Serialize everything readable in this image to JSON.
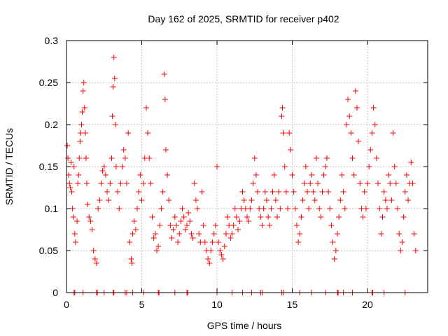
{
  "chart_data": {
    "type": "scatter",
    "title": "Day 162 of 2025, SRMTID for receiver p402",
    "xlabel": "GPS time / hours",
    "ylabel": "SRMTID / TECUs",
    "xlim": [
      0,
      24
    ],
    "ylim": [
      0,
      0.3
    ],
    "x_ticks": [
      0,
      5,
      10,
      15,
      20
    ],
    "x_tick_labels": [
      "0",
      "5",
      "10",
      "15",
      "20"
    ],
    "y_ticks": [
      0,
      0.05,
      0.1,
      0.15,
      0.2,
      0.25,
      0.3
    ],
    "y_tick_labels": [
      "0",
      "0.05",
      "0.1",
      "0.15",
      "0.2",
      "0.25",
      "0.3"
    ],
    "grid": true,
    "marker": "+",
    "color": "#ff0000",
    "series": [
      {
        "name": "SRMTID",
        "points": [
          [
            0.05,
            0.175
          ],
          [
            0.1,
            0.16
          ],
          [
            0.15,
            0.14
          ],
          [
            0.2,
            0.13
          ],
          [
            0.25,
            0.125
          ],
          [
            0.3,
            0.155
          ],
          [
            0.35,
            0.12
          ],
          [
            0.4,
            0.1
          ],
          [
            0.45,
            0.09
          ],
          [
            0.5,
            0.15
          ],
          [
            0.55,
            0.07
          ],
          [
            0.6,
            0.06
          ],
          [
            0.7,
            0.085
          ],
          [
            0.75,
            0.13
          ],
          [
            0.8,
            0.14
          ],
          [
            0.85,
            0.16
          ],
          [
            0.9,
            0.18
          ],
          [
            0.95,
            0.19
          ],
          [
            1.0,
            0.2
          ],
          [
            1.05,
            0.215
          ],
          [
            1.1,
            0.24
          ],
          [
            1.15,
            0.25
          ],
          [
            1.2,
            0.22
          ],
          [
            1.25,
            0.19
          ],
          [
            1.3,
            0.16
          ],
          [
            1.35,
            0.13
          ],
          [
            1.4,
            0.105
          ],
          [
            1.5,
            0.09
          ],
          [
            1.6,
            0.085
          ],
          [
            1.7,
            0.075
          ],
          [
            1.8,
            0.05
          ],
          [
            1.9,
            0.04
          ],
          [
            2.0,
            0.035
          ],
          [
            2.1,
            0.1
          ],
          [
            2.2,
            0.11
          ],
          [
            2.3,
            0.13
          ],
          [
            2.4,
            0.145
          ],
          [
            2.5,
            0.15
          ],
          [
            2.6,
            0.14
          ],
          [
            2.7,
            0.12
          ],
          [
            2.8,
            0.11
          ],
          [
            2.9,
            0.13
          ],
          [
            3.0,
            0.16
          ],
          [
            3.05,
            0.21
          ],
          [
            3.1,
            0.245
          ],
          [
            3.15,
            0.28
          ],
          [
            3.2,
            0.255
          ],
          [
            3.25,
            0.2
          ],
          [
            3.3,
            0.15
          ],
          [
            3.4,
            0.12
          ],
          [
            3.5,
            0.1
          ],
          [
            3.6,
            0.13
          ],
          [
            3.7,
            0.15
          ],
          [
            3.8,
            0.17
          ],
          [
            3.9,
            0.16
          ],
          [
            4.0,
            0.13
          ],
          [
            4.1,
            0.19
          ],
          [
            4.2,
            0.06
          ],
          [
            4.3,
            0.04
          ],
          [
            4.35,
            0.035
          ],
          [
            4.4,
            0.07
          ],
          [
            4.5,
            0.085
          ],
          [
            4.6,
            0.075
          ],
          [
            4.7,
            0.1
          ],
          [
            4.8,
            0.12
          ],
          [
            4.9,
            0.14
          ],
          [
            5.0,
            0.11
          ],
          [
            5.1,
            0.13
          ],
          [
            5.2,
            0.16
          ],
          [
            5.3,
            0.22
          ],
          [
            5.4,
            0.19
          ],
          [
            5.5,
            0.16
          ],
          [
            5.6,
            0.13
          ],
          [
            5.7,
            0.09
          ],
          [
            5.8,
            0.065
          ],
          [
            5.9,
            0.07
          ],
          [
            6.0,
            0.05
          ],
          [
            6.1,
            0.055
          ],
          [
            6.2,
            0.08
          ],
          [
            6.3,
            0.1
          ],
          [
            6.4,
            0.12
          ],
          [
            6.5,
            0.26
          ],
          [
            6.55,
            0.23
          ],
          [
            6.6,
            0.17
          ],
          [
            6.7,
            0.14
          ],
          [
            6.8,
            0.11
          ],
          [
            6.9,
            0.08
          ],
          [
            7.0,
            0.065
          ],
          [
            7.1,
            0.075
          ],
          [
            7.2,
            0.09
          ],
          [
            7.3,
            0.08
          ],
          [
            7.4,
            0.06
          ],
          [
            7.5,
            0.07
          ],
          [
            7.6,
            0.085
          ],
          [
            7.7,
            0.1
          ],
          [
            7.8,
            0.09
          ],
          [
            7.9,
            0.075
          ],
          [
            8.0,
            0.08
          ],
          [
            8.1,
            0.095
          ],
          [
            8.2,
            0.085
          ],
          [
            8.3,
            0.07
          ],
          [
            8.4,
            0.065
          ],
          [
            8.5,
            0.13
          ],
          [
            8.6,
            0.11
          ],
          [
            8.7,
            0.1
          ],
          [
            8.8,
            0.07
          ],
          [
            8.9,
            0.06
          ],
          [
            9.0,
            0.12
          ],
          [
            9.1,
            0.08
          ],
          [
            9.2,
            0.06
          ],
          [
            9.3,
            0.05
          ],
          [
            9.4,
            0.04
          ],
          [
            9.5,
            0.035
          ],
          [
            9.6,
            0.05
          ],
          [
            9.7,
            0.06
          ],
          [
            9.8,
            0.07
          ],
          [
            9.9,
            0.08
          ],
          [
            10.0,
            0.15
          ],
          [
            10.1,
            0.06
          ],
          [
            10.2,
            0.05
          ],
          [
            10.3,
            0.045
          ],
          [
            10.4,
            0.04
          ],
          [
            10.5,
            0.055
          ],
          [
            10.6,
            0.07
          ],
          [
            10.7,
            0.09
          ],
          [
            10.8,
            0.08
          ],
          [
            10.9,
            0.065
          ],
          [
            11.0,
            0.07
          ],
          [
            11.1,
            0.08
          ],
          [
            11.2,
            0.1
          ],
          [
            11.3,
            0.09
          ],
          [
            11.4,
            0.075
          ],
          [
            11.5,
            0.085
          ],
          [
            11.6,
            0.1
          ],
          [
            11.7,
            0.12
          ],
          [
            11.8,
            0.11
          ],
          [
            11.9,
            0.1
          ],
          [
            12.0,
            0.09
          ],
          [
            12.1,
            0.085
          ],
          [
            12.2,
            0.1
          ],
          [
            12.3,
            0.11
          ],
          [
            12.4,
            0.13
          ],
          [
            12.5,
            0.16
          ],
          [
            12.6,
            0.14
          ],
          [
            12.7,
            0.12
          ],
          [
            12.8,
            0.1
          ],
          [
            12.9,
            0.09
          ],
          [
            13.0,
            0.08
          ],
          [
            13.1,
            0.1
          ],
          [
            13.2,
            0.12
          ],
          [
            13.3,
            0.11
          ],
          [
            13.4,
            0.09
          ],
          [
            13.5,
            0.08
          ],
          [
            13.6,
            0.1
          ],
          [
            13.7,
            0.12
          ],
          [
            13.8,
            0.14
          ],
          [
            13.9,
            0.11
          ],
          [
            14.0,
            0.09
          ],
          [
            14.1,
            0.12
          ],
          [
            14.2,
            0.1
          ],
          [
            14.3,
            0.21
          ],
          [
            14.35,
            0.22
          ],
          [
            14.4,
            0.19
          ],
          [
            14.5,
            0.15
          ],
          [
            14.6,
            0.12
          ],
          [
            14.7,
            0.1
          ],
          [
            14.8,
            0.19
          ],
          [
            14.9,
            0.17
          ],
          [
            15.0,
            0.14
          ],
          [
            15.1,
            0.12
          ],
          [
            15.2,
            0.1
          ],
          [
            15.3,
            0.08
          ],
          [
            15.4,
            0.06
          ],
          [
            15.5,
            0.07
          ],
          [
            15.6,
            0.09
          ],
          [
            15.7,
            0.11
          ],
          [
            15.8,
            0.13
          ],
          [
            15.9,
            0.15
          ],
          [
            16.0,
            0.12
          ],
          [
            16.1,
            0.1
          ],
          [
            16.2,
            0.13
          ],
          [
            16.3,
            0.14
          ],
          [
            16.4,
            0.12
          ],
          [
            16.5,
            0.11
          ],
          [
            16.6,
            0.16
          ],
          [
            16.7,
            0.13
          ],
          [
            16.8,
            0.1
          ],
          [
            16.9,
            0.09
          ],
          [
            17.0,
            0.12
          ],
          [
            17.1,
            0.14
          ],
          [
            17.2,
            0.15
          ],
          [
            17.3,
            0.16
          ],
          [
            17.4,
            0.12
          ],
          [
            17.5,
            0.1
          ],
          [
            17.6,
            0.08
          ],
          [
            17.7,
            0.06
          ],
          [
            17.8,
            0.04
          ],
          [
            17.9,
            0.05
          ],
          [
            18.0,
            0.07
          ],
          [
            18.1,
            0.09
          ],
          [
            18.2,
            0.11
          ],
          [
            18.3,
            0.14
          ],
          [
            18.4,
            0.12
          ],
          [
            18.5,
            0.1
          ],
          [
            18.6,
            0.2
          ],
          [
            18.7,
            0.23
          ],
          [
            18.8,
            0.21
          ],
          [
            18.9,
            0.19
          ],
          [
            19.0,
            0.16
          ],
          [
            19.1,
            0.14
          ],
          [
            19.2,
            0.24
          ],
          [
            19.3,
            0.22
          ],
          [
            19.4,
            0.18
          ],
          [
            19.5,
            0.13
          ],
          [
            19.6,
            0.1
          ],
          [
            19.7,
            0.09
          ],
          [
            19.8,
            0.12
          ],
          [
            19.9,
            0.1
          ],
          [
            20.0,
            0.13
          ],
          [
            20.1,
            0.15
          ],
          [
            20.2,
            0.17
          ],
          [
            20.3,
            0.19
          ],
          [
            20.4,
            0.22
          ],
          [
            20.5,
            0.2
          ],
          [
            20.6,
            0.16
          ],
          [
            20.7,
            0.13
          ],
          [
            20.8,
            0.1
          ],
          [
            20.9,
            0.07
          ],
          [
            21.0,
            0.09
          ],
          [
            21.1,
            0.12
          ],
          [
            21.2,
            0.11
          ],
          [
            21.3,
            0.1
          ],
          [
            21.4,
            0.14
          ],
          [
            21.5,
            0.13
          ],
          [
            21.6,
            0.11
          ],
          [
            21.7,
            0.19
          ],
          [
            21.8,
            0.15
          ],
          [
            21.9,
            0.13
          ],
          [
            22.0,
            0.1
          ],
          [
            22.1,
            0.07
          ],
          [
            22.2,
            0.05
          ],
          [
            22.3,
            0.06
          ],
          [
            22.4,
            0.09
          ],
          [
            22.5,
            0.12
          ],
          [
            22.6,
            0.14
          ],
          [
            22.7,
            0.11
          ],
          [
            22.8,
            0.13
          ],
          [
            22.9,
            0.155
          ],
          [
            23.0,
            0.13
          ],
          [
            23.1,
            0.07
          ],
          [
            23.2,
            0.05
          ],
          [
            0.5,
            0.0
          ],
          [
            0.55,
            0.0
          ],
          [
            1.1,
            0.0
          ],
          [
            2.0,
            0.0
          ],
          [
            2.05,
            0.0
          ],
          [
            2.5,
            0.0
          ],
          [
            3.1,
            0.0
          ],
          [
            3.15,
            0.0
          ],
          [
            3.9,
            0.0
          ],
          [
            4.0,
            0.0
          ],
          [
            4.4,
            0.0
          ],
          [
            5.1,
            0.0
          ],
          [
            6.1,
            0.0
          ],
          [
            6.15,
            0.0
          ],
          [
            7.2,
            0.0
          ],
          [
            8.0,
            0.0
          ],
          [
            8.05,
            0.0
          ],
          [
            10.0,
            0.0
          ],
          [
            11.0,
            0.0
          ],
          [
            11.7,
            0.0
          ],
          [
            12.3,
            0.0
          ],
          [
            12.9,
            0.0
          ],
          [
            13.0,
            0.0
          ],
          [
            14.3,
            0.0
          ],
          [
            14.4,
            0.0
          ],
          [
            15.5,
            0.0
          ],
          [
            16.3,
            0.0
          ],
          [
            17.2,
            0.0
          ],
          [
            18.0,
            0.0
          ],
          [
            18.05,
            0.0
          ],
          [
            18.4,
            0.0
          ],
          [
            19.0,
            0.0
          ],
          [
            20.3,
            0.0
          ],
          [
            20.35,
            0.0
          ],
          [
            21.1,
            0.0
          ],
          [
            22.5,
            0.0
          ]
        ]
      }
    ]
  }
}
